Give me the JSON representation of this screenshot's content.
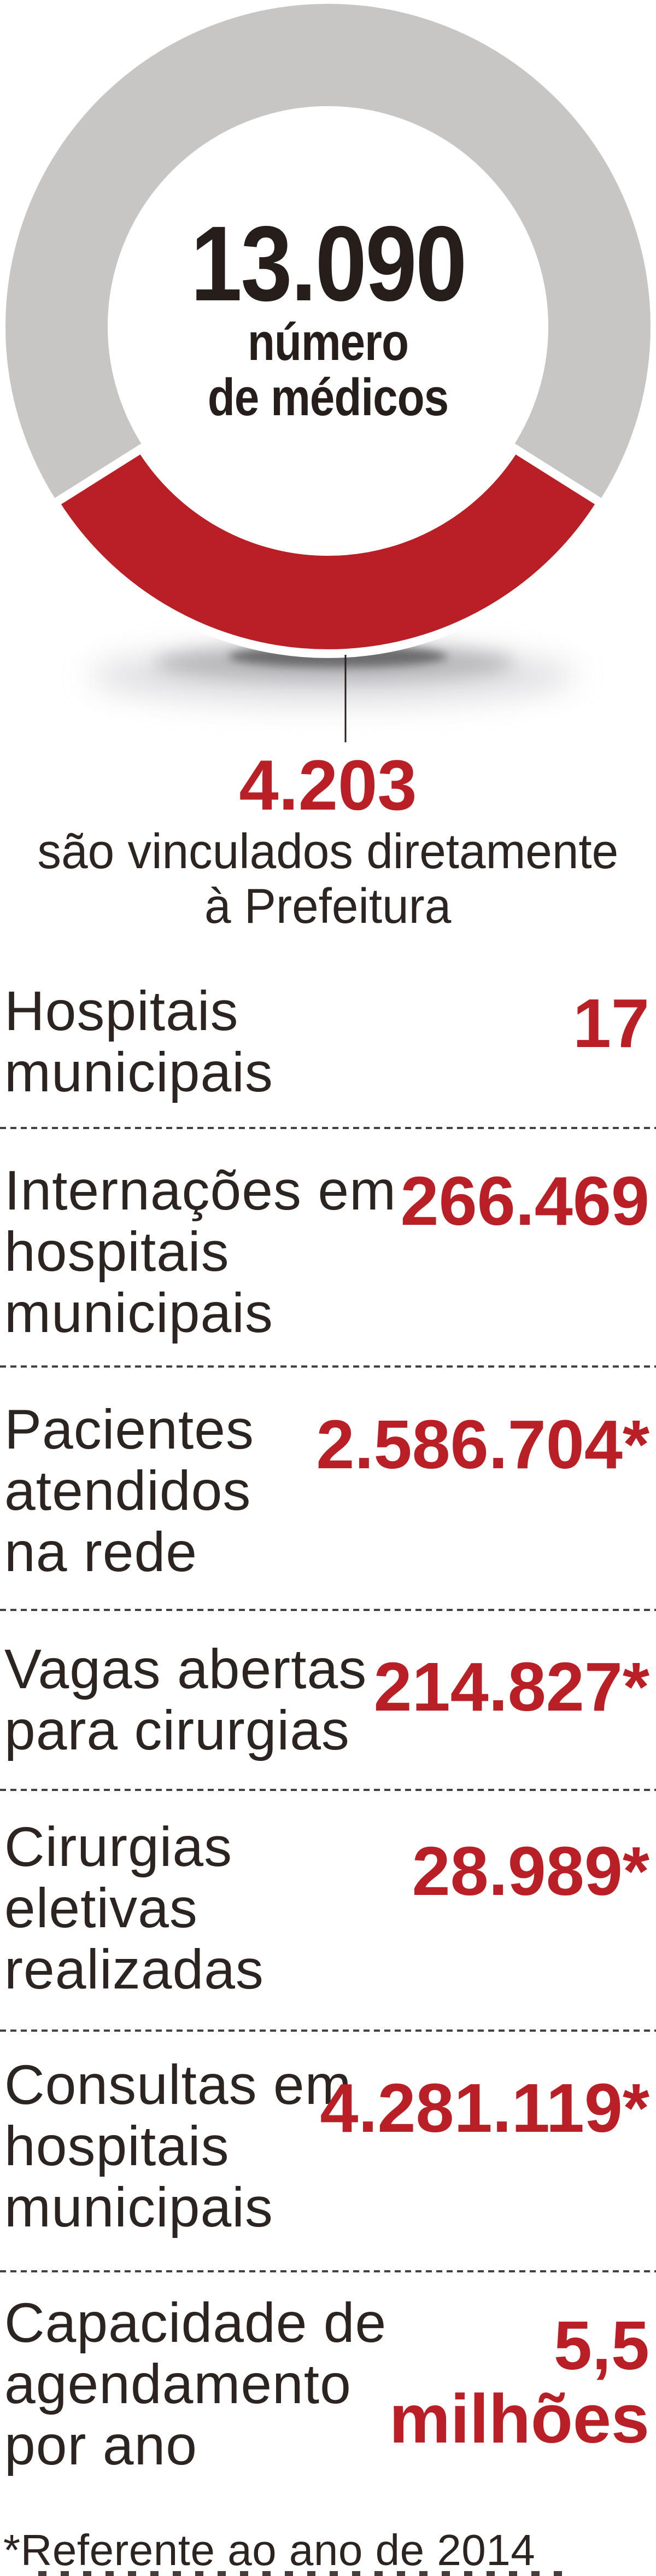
{
  "colors": {
    "accent_red": "#b82025",
    "ring_gray": "#c7c6c5",
    "text_dark": "#261e1b",
    "dash_gray": "#45403d"
  },
  "chart_data": {
    "type": "donut",
    "center_value": "13.090",
    "center_label_line1": "número",
    "center_label_line2": "de médicos",
    "total": 13090,
    "highlighted_value": 4203,
    "highlighted_value_label": "4.203",
    "highlighted_description": "são vinculados diretamente à Prefeitura",
    "highlight_color": "#b82025",
    "remainder_color": "#c7c6c5",
    "legend_position": "none",
    "grid": false
  },
  "callout": {
    "value": "4.203",
    "line1": "são vinculados diretamente",
    "line2": "à Prefeitura"
  },
  "stats": [
    {
      "label_lines": [
        "Hospitais",
        "municipais"
      ],
      "value": "17"
    },
    {
      "label_lines": [
        "Internações em",
        "hospitais",
        "municipais"
      ],
      "value": "266.469"
    },
    {
      "label_lines": [
        "Pacientes",
        "atendidos",
        "na rede"
      ],
      "value": "2.586.704*"
    },
    {
      "label_lines": [
        "Vagas abertas",
        "para cirurgias"
      ],
      "value": "214.827*"
    },
    {
      "label_lines": [
        "Cirurgias",
        "eletivas",
        "realizadas"
      ],
      "value": "28.989*"
    },
    {
      "label_lines": [
        "Consultas em",
        "hospitais",
        "municipais"
      ],
      "value": "4.281.119*"
    },
    {
      "label_lines": [
        "Capacidade de",
        "agendamento",
        "por ano"
      ],
      "value_line1": "5,5",
      "value_line2": "milhões"
    }
  ],
  "footnote": "*Referente ao ano de 2014"
}
